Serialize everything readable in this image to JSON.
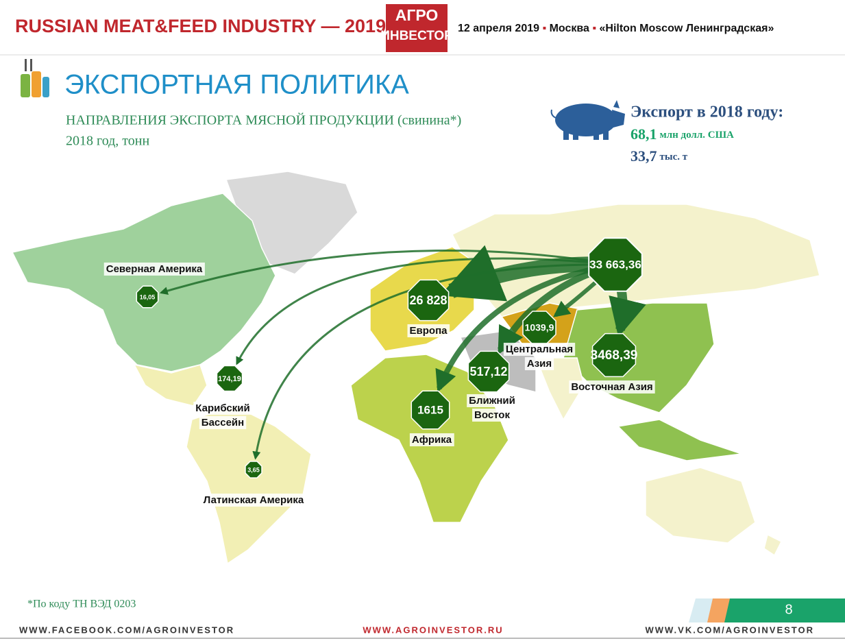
{
  "header": {
    "event": "RUSSIAN MEAT&FEED INDUSTRY — 2019",
    "logo_top": "АГРО",
    "logo_bottom": "ИНВЕСТОР",
    "date": "12 апреля 2019",
    "city": "Москва",
    "venue": "«Hilton Moscow Ленинградская»"
  },
  "title": "ЭКСПОРТНАЯ ПОЛИТИКА",
  "subtitle": "НАПРАВЛЕНИЯ ЭКСПОРТА МЯСНОЙ ПРОДУКЦИИ (свинина*)",
  "subtitle_period": "2018 год, тонн",
  "summary": {
    "heading": "Экспорт в 2018 году:",
    "value_usd": "68,1",
    "unit_usd": "млн долл. США",
    "value_tons": "33,7",
    "unit_tons": "тыс. т"
  },
  "map": {
    "origin_value": "33 663,36",
    "regions": [
      {
        "name": [
          "Северная Америка"
        ],
        "value": "16,05"
      },
      {
        "name": [
          "Европа"
        ],
        "value": "26 828"
      },
      {
        "name": [
          "Центральная",
          "Азия"
        ],
        "value": "1039,9"
      },
      {
        "name": [
          "Восточная Азия"
        ],
        "value": "3468,39"
      },
      {
        "name": [
          "Ближний",
          "Восток"
        ],
        "value": "517,12"
      },
      {
        "name": [
          "Африка"
        ],
        "value": "1615"
      },
      {
        "name": [
          "Карибский",
          "Бассейн"
        ],
        "value": "174,19"
      },
      {
        "name": [
          "Латинская Америка"
        ],
        "value": "3,65"
      }
    ]
  },
  "footnote": "*По коду ТН ВЭД 0203",
  "page_number": "8",
  "footer": {
    "left": "WWW.FACEBOOK.COM/AGROINVESTOR",
    "center": "WWW.AGROINVESTOR.RU",
    "right": "WWW.VK.COM/AGROINVESTOR"
  }
}
